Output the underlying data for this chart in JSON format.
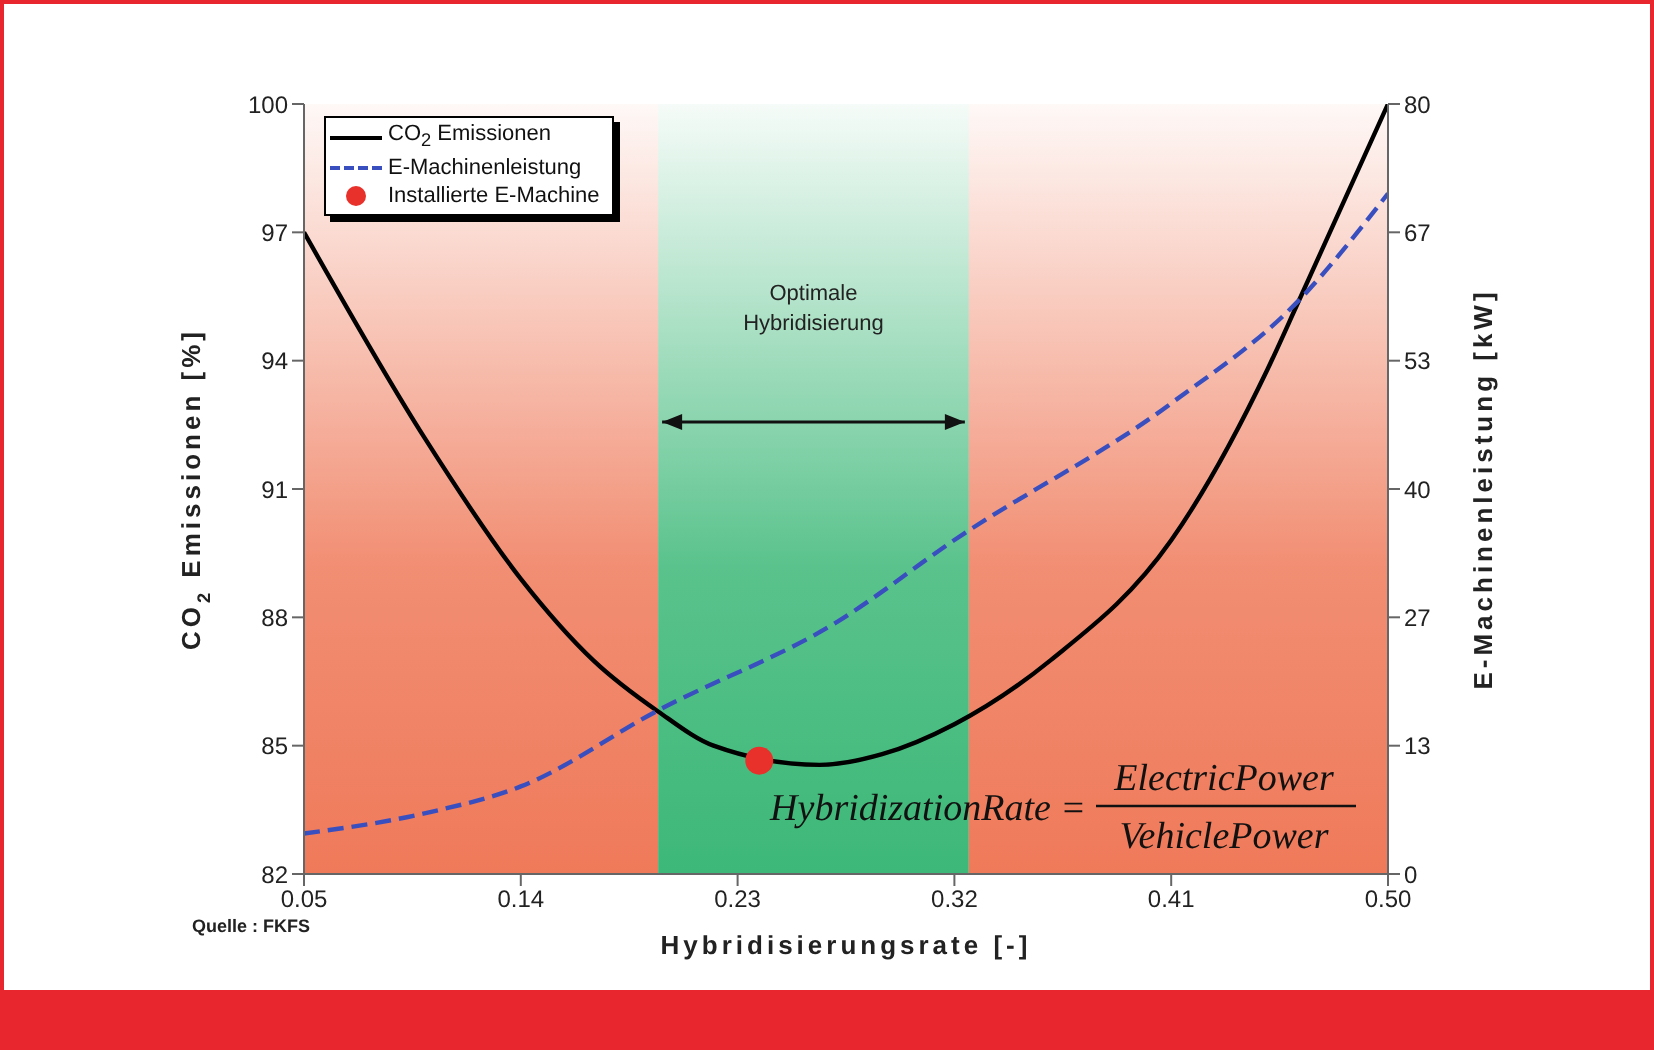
{
  "chart_data": {
    "type": "line",
    "xlabel": "Hybridisierungsrate [-]",
    "ylabel": "CO$_{2}$ Emissionen [%]",
    "y2label": "E-Machinenleistung [kW]",
    "xlim": [
      0.05,
      0.5
    ],
    "xticks": [
      0.05,
      0.14,
      0.23,
      0.32,
      0.41,
      {
        "value": 0.5,
        "label": "0.50"
      }
    ],
    "ylim": [
      82,
      100
    ],
    "yticks": [
      82,
      85,
      88,
      91,
      94,
      97,
      100
    ],
    "y2lim": [
      0,
      80
    ],
    "y2ticks": [
      0,
      {
        "value": 13.33,
        "label": "13"
      },
      {
        "value": 26.67,
        "label": "27"
      },
      40,
      {
        "value": 53.33,
        "label": "53"
      },
      {
        "value": 66.67,
        "label": "67"
      },
      80
    ],
    "series": [
      {
        "name": "CO$_{2}$ Emissionen",
        "color": "#000000",
        "line_style": "solid",
        "x": [
          0.05,
          0.1,
          0.14,
          0.17,
          0.197,
          0.22,
          0.264,
          0.29,
          0.32,
          0.36,
          0.41,
          0.45,
          0.463,
          0.5
        ],
        "values": [
          97,
          92.2,
          88.9,
          87.0,
          85.8,
          85.0,
          84.55,
          84.8,
          85.5,
          87.0,
          89.8,
          93.8,
          95.4,
          100
        ]
      },
      {
        "name": "E-Machinenleistung",
        "axis": "y2",
        "color": "#3a4fbf",
        "line_style": "dashed",
        "x": [
          0.05,
          0.1,
          0.14,
          0.197,
          0.272,
          0.32,
          0.41,
          0.463,
          0.5
        ],
        "values": [
          4.2,
          6.3,
          9.1,
          17.0,
          26.3,
          34.7,
          48.9,
          59.6,
          70.7
        ]
      },
      {
        "name": "Installierte E-Machine",
        "type": "scatter",
        "marker": "circle",
        "color": "#e8312a",
        "x": [
          0.239
        ],
        "values": [
          84.65
        ]
      }
    ],
    "bands": [
      {
        "axis": "x",
        "from": 0.05,
        "to": 0.197,
        "color": "#ef7a5a"
      },
      {
        "axis": "x",
        "from": 0.197,
        "to": 0.326,
        "color": "#3db878",
        "label": "Optimale Hybridisierung"
      },
      {
        "axis": "x",
        "from": 0.326,
        "to": 0.5,
        "color": "#ef7a5a"
      }
    ],
    "annotations": [
      "HybridizationRate = ElectricPower VehiclePower",
      "Quelle : FKFS"
    ],
    "legend": "top left",
    "grid": false
  }
}
